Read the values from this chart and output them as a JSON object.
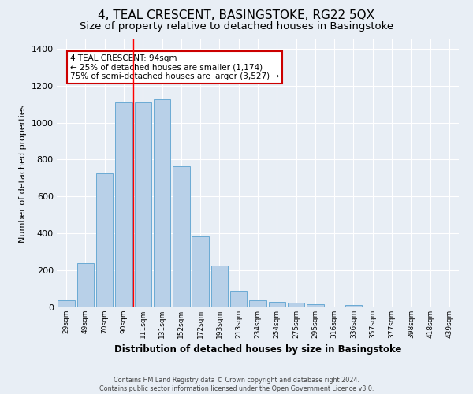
{
  "title": "4, TEAL CRESCENT, BASINGSTOKE, RG22 5QX",
  "subtitle": "Size of property relative to detached houses in Basingstoke",
  "xlabel": "Distribution of detached houses by size in Basingstoke",
  "ylabel": "Number of detached properties",
  "categories": [
    "29sqm",
    "49sqm",
    "70sqm",
    "90sqm",
    "111sqm",
    "131sqm",
    "152sqm",
    "172sqm",
    "193sqm",
    "213sqm",
    "234sqm",
    "254sqm",
    "275sqm",
    "295sqm",
    "316sqm",
    "336sqm",
    "357sqm",
    "377sqm",
    "398sqm",
    "418sqm",
    "439sqm"
  ],
  "values": [
    38,
    240,
    725,
    1110,
    1110,
    1125,
    762,
    383,
    225,
    90,
    38,
    30,
    25,
    18,
    0,
    12,
    0,
    0,
    0,
    0,
    0
  ],
  "bar_color": "#b8d0e8",
  "bar_edge_color": "#6aaad4",
  "background_color": "#e8eef5",
  "grid_color": "#ffffff",
  "red_line_x": 3.5,
  "annotation_text": "4 TEAL CRESCENT: 94sqm\n← 25% of detached houses are smaller (1,174)\n75% of semi-detached houses are larger (3,527) →",
  "annotation_box_color": "#ffffff",
  "annotation_box_edge": "#cc0000",
  "footer1": "Contains HM Land Registry data © Crown copyright and database right 2024.",
  "footer2": "Contains public sector information licensed under the Open Government Licence v3.0.",
  "ylim": [
    0,
    1450
  ],
  "yticks": [
    0,
    200,
    400,
    600,
    800,
    1000,
    1200,
    1400
  ],
  "title_fontsize": 11,
  "subtitle_fontsize": 9.5,
  "bar_width": 0.88
}
